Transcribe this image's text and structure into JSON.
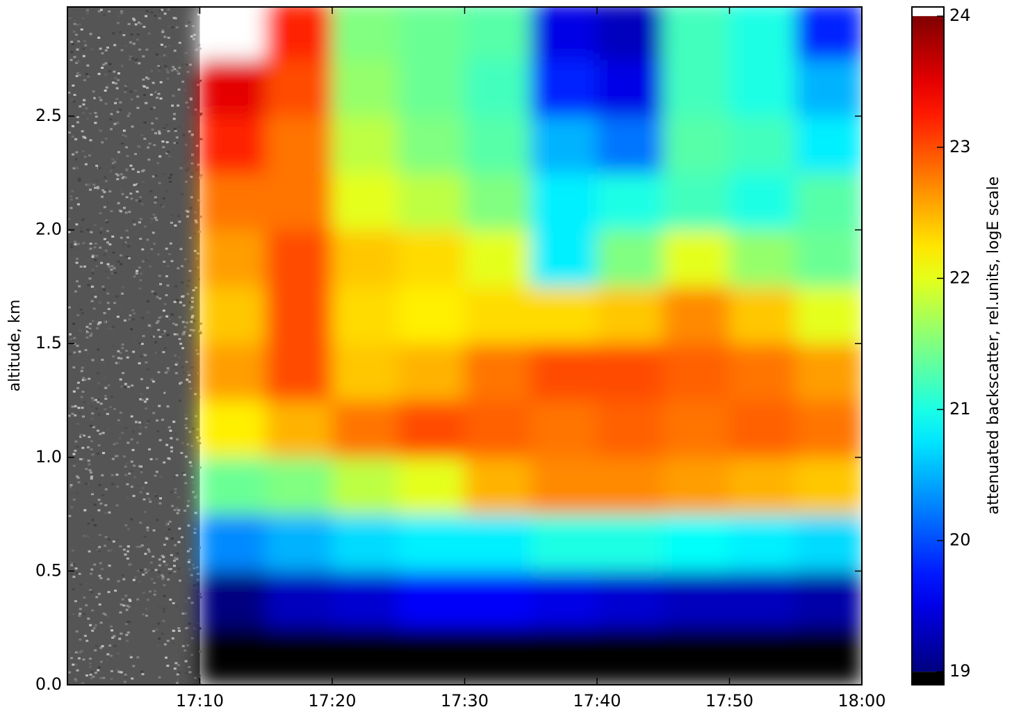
{
  "chart_data": {
    "type": "heatmap",
    "ylabel": "altitude, km",
    "colorbar_label": "attenuated backscatter, rel.units, logE scale",
    "colormap": "jet",
    "under_color": "#000000",
    "over_color": "#ffffff",
    "xlim": [
      0,
      60
    ],
    "xticks": [
      {
        "value": 10,
        "label": "17:10"
      },
      {
        "value": 20,
        "label": "17:20"
      },
      {
        "value": 30,
        "label": "17:30"
      },
      {
        "value": 40,
        "label": "17:40"
      },
      {
        "value": 50,
        "label": "17:50"
      },
      {
        "value": 60,
        "label": "18:00"
      }
    ],
    "ylim": [
      0,
      2.98
    ],
    "yticks": [
      {
        "value": 0,
        "label": "0.0"
      },
      0.5,
      {
        "value": 1,
        "label": "1.0"
      },
      1.5,
      {
        "value": 2,
        "label": "2.0"
      },
      2.5
    ],
    "clim": [
      18.9,
      24.07
    ],
    "cticks": [
      19,
      20,
      21,
      22,
      23,
      24
    ],
    "xbins": [
      10,
      15,
      20,
      25,
      30,
      35,
      40,
      45,
      50,
      55,
      60
    ],
    "ybins": [
      0,
      0.25,
      0.5,
      0.75,
      1.0,
      1.25,
      1.5,
      1.75,
      2.0,
      2.25,
      2.5,
      2.75,
      3.0
    ],
    "z": [
      [
        18.9,
        18.9,
        18.9,
        18.9,
        18.9,
        18.9,
        18.9,
        18.9,
        18.9,
        18.9
      ],
      [
        19.0,
        19.3,
        19.4,
        19.6,
        19.6,
        19.5,
        19.4,
        19.3,
        19.3,
        19.2
      ],
      [
        20.3,
        20.5,
        20.7,
        20.8,
        20.8,
        21.0,
        21.0,
        20.9,
        20.8,
        20.7
      ],
      [
        21.4,
        21.5,
        21.8,
        22.0,
        22.5,
        22.7,
        22.7,
        22.6,
        22.5,
        22.4
      ],
      [
        22.2,
        22.5,
        22.8,
        23.0,
        22.9,
        22.8,
        22.9,
        22.8,
        22.9,
        22.8
      ],
      [
        22.6,
        23.0,
        22.4,
        22.5,
        22.8,
        23.0,
        23.0,
        22.9,
        22.8,
        22.6
      ],
      [
        22.4,
        23.0,
        22.3,
        22.2,
        22.3,
        22.3,
        22.4,
        22.7,
        22.4,
        22.0
      ],
      [
        22.6,
        23.0,
        22.4,
        22.3,
        22.0,
        20.8,
        21.5,
        22.0,
        21.6,
        21.4
      ],
      [
        22.8,
        22.8,
        22.0,
        21.8,
        21.5,
        20.8,
        21.0,
        21.2,
        21.0,
        21.3
      ],
      [
        23.2,
        22.8,
        21.8,
        21.5,
        21.3,
        20.5,
        20.2,
        21.3,
        21.2,
        20.8
      ],
      [
        23.5,
        23.0,
        21.6,
        21.4,
        21.2,
        19.8,
        19.5,
        21.2,
        21.0,
        20.5
      ],
      [
        24.1,
        23.2,
        21.5,
        21.4,
        21.3,
        19.5,
        19.3,
        21.2,
        21.0,
        19.8
      ]
    ]
  }
}
